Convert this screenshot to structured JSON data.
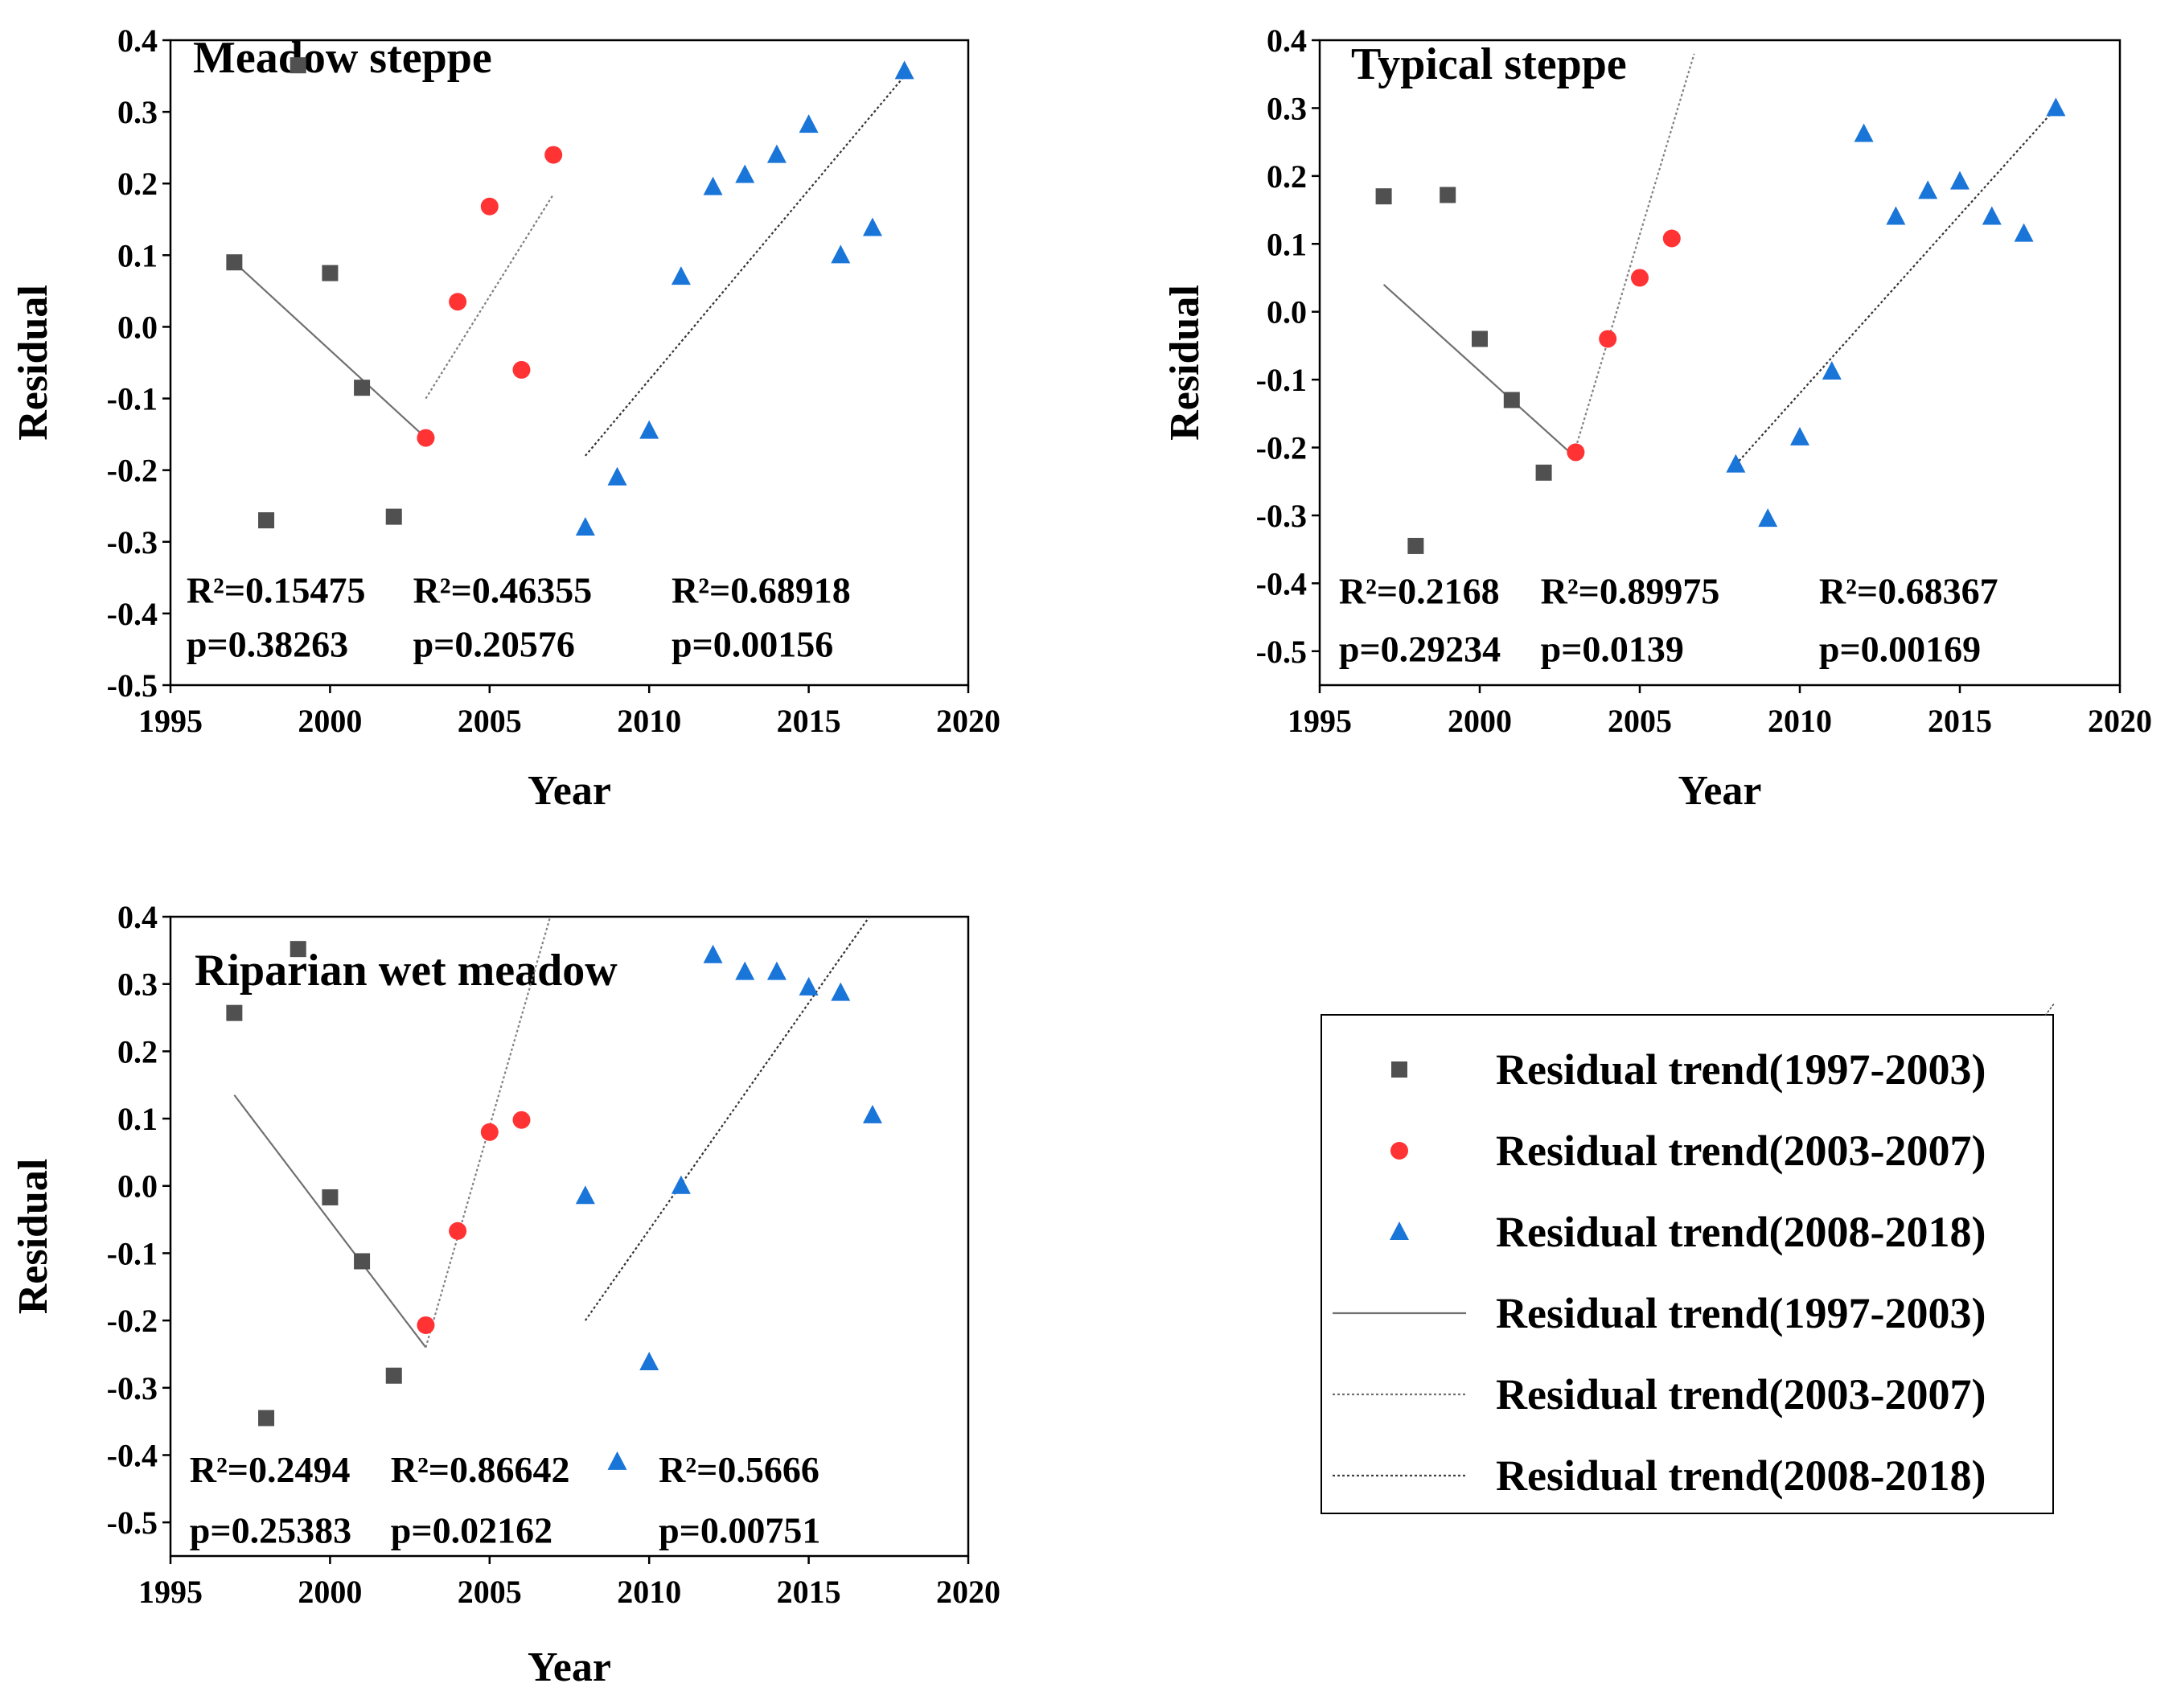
{
  "chart_data": [
    {
      "type": "scatter",
      "title": "Meadow steppe",
      "xlabel": "Year",
      "ylabel": "Residual",
      "xlim": [
        1995,
        2020
      ],
      "ylim": [
        -0.5,
        0.4
      ],
      "xticks": [
        1995,
        2000,
        2005,
        2010,
        2015,
        2020
      ],
      "xtick_labels": [
        "1995",
        "2000",
        "2005",
        "2010",
        "2015",
        "2020"
      ],
      "yticks": [
        0.4,
        0.3,
        0.2,
        0.1,
        0.0,
        -0.1,
        -0.2,
        -0.3,
        -0.4,
        -0.5
      ],
      "ytick_labels": [
        "0.4",
        "0.3",
        "0.2",
        "0.1",
        "0.0",
        "-0.1",
        "-0.2",
        "-0.3",
        "-0.4",
        "-0.5"
      ],
      "series": [
        {
          "name": "Residual trend(1997-2003)",
          "marker": "square",
          "color": "#505050",
          "x": [
            1997,
            1998,
            1999,
            2000,
            2001,
            2002
          ],
          "y": [
            0.09,
            -0.27,
            0.365,
            0.075,
            -0.085,
            -0.265
          ]
        },
        {
          "name": "Residual trend(2003-2007)",
          "marker": "circle",
          "color": "#ff3333",
          "x": [
            2003,
            2004,
            2005,
            2006,
            2007
          ],
          "y": [
            -0.155,
            0.035,
            0.168,
            -0.06,
            0.24
          ]
        },
        {
          "name": "Residual trend(2008-2018)",
          "marker": "triangle",
          "color": "#1a75d9",
          "x": [
            2008,
            2009,
            2010,
            2011,
            2012,
            2013,
            2014,
            2015,
            2016,
            2017,
            2018
          ],
          "y": [
            -0.28,
            -0.21,
            -0.145,
            0.07,
            0.195,
            0.212,
            0.24,
            0.282,
            0.1,
            0.138,
            0.357
          ]
        }
      ],
      "trend_lines": [
        {
          "name": "Residual trend(1997-2003)",
          "style": "solid",
          "x": [
            1997,
            2003
          ],
          "y": [
            0.09,
            -0.155
          ]
        },
        {
          "name": "Residual trend(2003-2007)",
          "style": "dotted",
          "x": [
            2003,
            2007
          ],
          "y": [
            -0.1,
            0.185
          ]
        },
        {
          "name": "Residual trend(2008-2018)",
          "style": "dotted",
          "x": [
            2008,
            2018
          ],
          "y": [
            -0.18,
            0.35
          ]
        }
      ],
      "annotations": [
        {
          "label": "R²=0.15475",
          "x": 1995.5,
          "y": -0.385
        },
        {
          "label": "p=0.38263",
          "x": 1995.5,
          "y": -0.46
        },
        {
          "label": "R²=0.46355",
          "x": 2002.6,
          "y": -0.385
        },
        {
          "label": "p=0.20576",
          "x": 2002.6,
          "y": -0.46
        },
        {
          "label": "R²=0.68918",
          "x": 2010.7,
          "y": -0.385
        },
        {
          "label": "p=0.00156",
          "x": 2010.7,
          "y": -0.46
        }
      ]
    },
    {
      "type": "scatter",
      "title": "Typical steppe",
      "xlabel": "Year",
      "ylabel": "Residual",
      "xlim": [
        1995,
        2020
      ],
      "ylim": [
        -0.55,
        0.4
      ],
      "xticks": [
        1995,
        2000,
        2005,
        2010,
        2015,
        2020
      ],
      "xtick_labels": [
        "1995",
        "2000",
        "2005",
        "2010",
        "2015",
        "2020"
      ],
      "yticks": [
        0.4,
        0.3,
        0.2,
        0.1,
        0.0,
        -0.1,
        -0.2,
        -0.3,
        -0.4,
        -0.5
      ],
      "ytick_labels": [
        "0.4",
        "0.3",
        "0.2",
        "0.1",
        "0.0",
        "-0.1",
        "-0.2",
        "-0.3",
        "-0.4",
        "-0.5"
      ],
      "series": [
        {
          "name": "Residual trend(1997-2003)",
          "marker": "square",
          "color": "#505050",
          "x": [
            1997,
            1998,
            1999,
            2000,
            2001,
            2002
          ],
          "y": [
            0.17,
            -0.345,
            0.172,
            -0.04,
            -0.13,
            -0.237
          ]
        },
        {
          "name": "Residual trend(2003-2007)",
          "marker": "circle",
          "color": "#ff3333",
          "x": [
            2003,
            2004,
            2005,
            2006
          ],
          "y": [
            -0.207,
            -0.04,
            0.05,
            0.108
          ]
        },
        {
          "name": "Residual trend(2008-2018)",
          "marker": "triangle",
          "color": "#1a75d9",
          "x": [
            2008,
            2009,
            2010,
            2011,
            2012,
            2013,
            2014,
            2015,
            2016,
            2017,
            2018
          ],
          "y": [
            -0.225,
            -0.305,
            -0.185,
            -0.088,
            0.262,
            0.14,
            0.178,
            0.192,
            0.14,
            0.115,
            0.3
          ]
        }
      ],
      "trend_lines": [
        {
          "name": "Residual trend(1997-2003)",
          "style": "solid",
          "x": [
            1997,
            2003
          ],
          "y": [
            0.04,
            -0.215
          ]
        },
        {
          "name": "Residual trend(2003-2007)",
          "style": "dotted",
          "x": [
            2003,
            2006.7
          ],
          "y": [
            -0.2,
            0.38
          ]
        },
        {
          "name": "Residual trend(2008-2018)",
          "style": "dotted",
          "x": [
            2008,
            2018
          ],
          "y": [
            -0.225,
            0.3
          ]
        }
      ],
      "annotations": [
        {
          "label": "R²=0.2168",
          "x": 1995.6,
          "y": -0.43
        },
        {
          "label": "p=0.29234",
          "x": 1995.6,
          "y": -0.515
        },
        {
          "label": "R²=0.89975",
          "x": 2001.9,
          "y": -0.43
        },
        {
          "label": "p=0.0139",
          "x": 2001.9,
          "y": -0.515
        },
        {
          "label": "R²=0.68367",
          "x": 2010.6,
          "y": -0.43
        },
        {
          "label": "p=0.00169",
          "x": 2010.6,
          "y": -0.515
        }
      ]
    },
    {
      "type": "scatter",
      "title": "Riparian wet meadow",
      "xlabel": "Year",
      "ylabel": "Residual",
      "xlim": [
        1995,
        2020
      ],
      "ylim": [
        -0.55,
        0.4
      ],
      "xticks": [
        1995,
        2000,
        2005,
        2010,
        2015,
        2020
      ],
      "xtick_labels": [
        "1995",
        "2000",
        "2005",
        "2010",
        "2015",
        "2020"
      ],
      "yticks": [
        0.4,
        0.3,
        0.2,
        0.1,
        0.0,
        -0.1,
        -0.2,
        -0.3,
        -0.4,
        -0.5
      ],
      "ytick_labels": [
        "0.4",
        "0.3",
        "0.2",
        "0.1",
        "0.0",
        "-0.1",
        "-0.2",
        "-0.3",
        "-0.4",
        "-0.5"
      ],
      "series": [
        {
          "name": "Residual trend(1997-2003)",
          "marker": "square",
          "color": "#505050",
          "x": [
            1997,
            1998,
            1999,
            2000,
            2001,
            2002
          ],
          "y": [
            0.257,
            -0.345,
            0.352,
            -0.017,
            -0.112,
            -0.282
          ]
        },
        {
          "name": "Residual trend(2003-2007)",
          "marker": "circle",
          "color": "#ff3333",
          "x": [
            2003,
            2004,
            2005,
            2006
          ],
          "y": [
            -0.207,
            -0.067,
            0.08,
            0.098
          ]
        },
        {
          "name": "Residual trend(2008-2018)",
          "marker": "triangle",
          "color": "#1a75d9",
          "x": [
            2008,
            2009,
            2010,
            2011,
            2012,
            2013,
            2014,
            2015,
            2016,
            2017
          ],
          "y": [
            -0.015,
            -0.41,
            -0.262,
            0.0,
            0.343,
            0.318,
            0.318,
            0.295,
            0.287,
            0.105
          ]
        }
      ],
      "trend_lines": [
        {
          "name": "Residual trend(1997-2003)",
          "style": "solid",
          "x": [
            1997,
            2003
          ],
          "y": [
            0.135,
            -0.24
          ]
        },
        {
          "name": "Residual trend(2003-2007)",
          "style": "dotted",
          "x": [
            2003,
            2006.9
          ],
          "y": [
            -0.24,
            0.4
          ]
        },
        {
          "name": "Residual trend(2008-2018)",
          "style": "dotted",
          "x": [
            2008,
            2016.9
          ],
          "y": [
            -0.2,
            0.4
          ]
        }
      ],
      "annotations": [
        {
          "label": "R²=0.2494",
          "x": 1995.6,
          "y": -0.44
        },
        {
          "label": "p=0.25383",
          "x": 1995.6,
          "y": -0.53
        },
        {
          "label": "R²=0.86642",
          "x": 2001.9,
          "y": -0.44
        },
        {
          "label": "p=0.02162",
          "x": 2001.9,
          "y": -0.53
        },
        {
          "label": "R²=0.5666",
          "x": 2010.3,
          "y": -0.44
        },
        {
          "label": "p=0.00751",
          "x": 2010.3,
          "y": -0.53
        }
      ]
    }
  ],
  "legend": {
    "placement": "bottom-right",
    "entries": [
      {
        "label": "Residual trend(1997-2003)",
        "kind": "marker",
        "marker": "square",
        "color": "#505050"
      },
      {
        "label": "Residual trend(2003-2007)",
        "kind": "marker",
        "marker": "circle",
        "color": "#ff3333"
      },
      {
        "label": "Residual trend(2008-2018)",
        "kind": "marker",
        "marker": "triangle",
        "color": "#1a75d9"
      },
      {
        "label": "Residual trend(1997-2003)",
        "kind": "line",
        "style": "solid",
        "color": "#707070"
      },
      {
        "label": "Residual trend(2003-2007)",
        "kind": "line",
        "style": "dotted",
        "color": "#707070"
      },
      {
        "label": "Residual trend(2008-2018)",
        "kind": "line",
        "style": "dotted",
        "color": "#404040"
      }
    ]
  }
}
